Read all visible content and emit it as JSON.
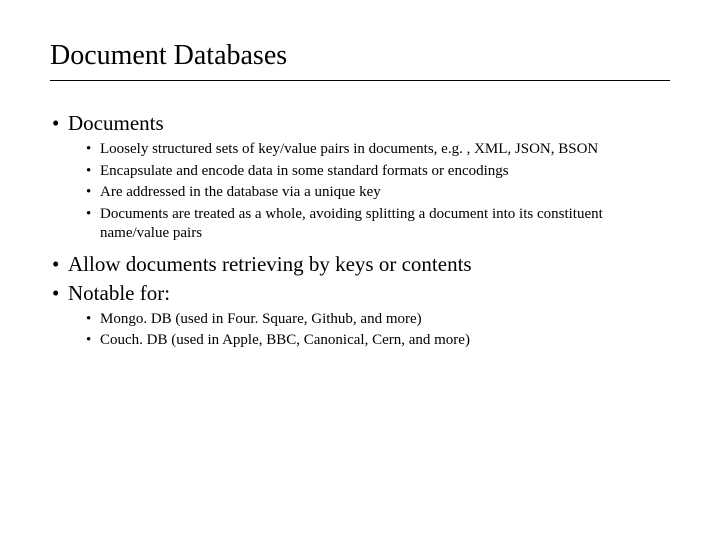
{
  "slide": {
    "title": "Document Databases",
    "title_fontsize": 28,
    "body_fontsize_level1": 21,
    "body_fontsize_level2": 15,
    "text_color": "#000000",
    "background_color": "#ffffff",
    "rule_color": "#000000",
    "font_family": "Times New Roman",
    "bullets": [
      {
        "text": "Documents",
        "children": [
          {
            "text": "Loosely structured sets of key/value pairs in documents, e.g. , XML, JSON, BSON"
          },
          {
            "text": "Encapsulate and encode data in some standard formats or encodings"
          },
          {
            "text": "Are addressed in the database via a unique key"
          },
          {
            "text": "Documents are treated as a whole, avoiding splitting a document into its constituent name/value pairs"
          }
        ]
      },
      {
        "text": "Allow documents retrieving by keys or contents",
        "children": []
      },
      {
        "text": "Notable for:",
        "children": [
          {
            "text": "Mongo. DB (used in Four. Square, Github, and more)"
          },
          {
            "text": "Couch. DB (used in Apple, BBC, Canonical, Cern, and more)"
          }
        ]
      }
    ]
  }
}
